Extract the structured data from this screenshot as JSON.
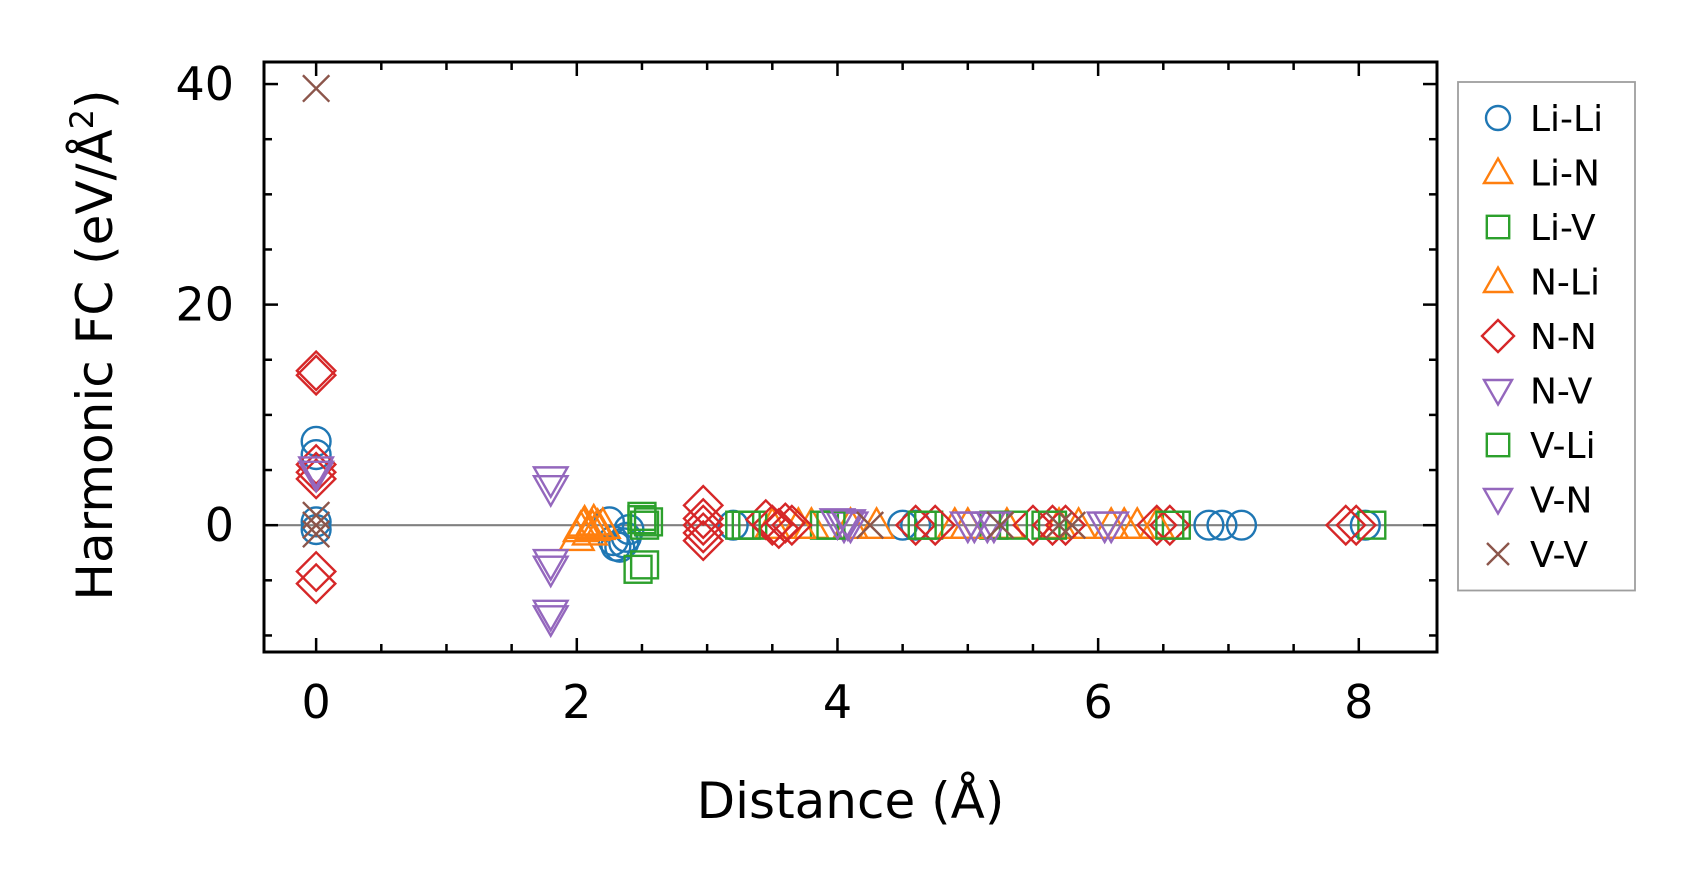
{
  "chart_data": {
    "type": "scatter",
    "title": "",
    "xlabel": "Distance (Å)",
    "ylabel_main": "Harmonic FC (eV/Å",
    "ylabel_sup": "2",
    "ylabel_close": ")",
    "xlim": [
      -0.4,
      8.6
    ],
    "ylim": [
      -11.5,
      42
    ],
    "xticks": [
      0,
      2,
      4,
      6,
      8
    ],
    "xtick_labels": [
      "0",
      "2",
      "4",
      "6",
      "8"
    ],
    "yticks": [
      0,
      20,
      40
    ],
    "ytick_labels": [
      "0",
      "20",
      "40"
    ],
    "reference_line_y": 0,
    "legend_position": "outside-right",
    "series": [
      {
        "name": "Li-Li",
        "marker": "circle",
        "color": "#1f77b4",
        "points": [
          [
            0,
            7.6
          ],
          [
            0,
            6.4
          ],
          [
            0,
            0.3
          ],
          [
            0,
            -0.4
          ],
          [
            2.25,
            0.3
          ],
          [
            2.28,
            -1.4
          ],
          [
            2.3,
            -1.9
          ],
          [
            2.33,
            -2.0
          ],
          [
            2.36,
            -1.6
          ],
          [
            2.38,
            -1.1
          ],
          [
            2.4,
            -0.4
          ],
          [
            3.2,
            0.0
          ],
          [
            4.5,
            0.0
          ],
          [
            4.6,
            0.0
          ],
          [
            6.85,
            0.0
          ],
          [
            6.95,
            0.0
          ],
          [
            7.1,
            0.0
          ],
          [
            8.05,
            0.0
          ]
        ]
      },
      {
        "name": "Li-N",
        "marker": "triangle-up",
        "color": "#ff7f0e",
        "points": [
          [
            2.0,
            -1.1
          ],
          [
            2.03,
            -0.3
          ],
          [
            2.06,
            0.2
          ],
          [
            2.1,
            -0.6
          ],
          [
            2.13,
            0.3
          ],
          [
            2.16,
            -0.1
          ],
          [
            2.2,
            0.0
          ],
          [
            3.5,
            0.0
          ],
          [
            3.8,
            0.0
          ],
          [
            4.1,
            0.0
          ],
          [
            4.9,
            0.0
          ],
          [
            5.3,
            0.0
          ],
          [
            5.85,
            0.0
          ],
          [
            6.2,
            0.0
          ],
          [
            6.3,
            0.0
          ]
        ]
      },
      {
        "name": "Li-V",
        "marker": "square",
        "color": "#2ca02c",
        "points": [
          [
            2.47,
            -4.0
          ],
          [
            2.52,
            -3.6
          ],
          [
            2.5,
            0.5
          ],
          [
            2.52,
            0.0
          ],
          [
            3.25,
            0.0
          ],
          [
            3.35,
            0.0
          ],
          [
            3.9,
            0.0
          ],
          [
            4.7,
            0.0
          ],
          [
            5.2,
            0.0
          ],
          [
            5.6,
            0.0
          ],
          [
            6.6,
            0.0
          ],
          [
            8.1,
            0.0
          ]
        ]
      },
      {
        "name": "N-Li",
        "marker": "triangle-up",
        "color": "#ff7f0e",
        "points": [
          [
            2.05,
            0.0
          ],
          [
            2.12,
            -0.2
          ],
          [
            3.7,
            0.0
          ],
          [
            4.3,
            0.0
          ],
          [
            5.0,
            0.0
          ],
          [
            5.7,
            0.0
          ],
          [
            6.1,
            0.0
          ],
          [
            6.45,
            0.0
          ]
        ]
      },
      {
        "name": "N-N",
        "marker": "diamond",
        "color": "#d62728",
        "points": [
          [
            0,
            14.0
          ],
          [
            0,
            13.6
          ],
          [
            0,
            5.5
          ],
          [
            0,
            4.8
          ],
          [
            0,
            4.2
          ],
          [
            0,
            -4.2
          ],
          [
            0,
            -5.3
          ],
          [
            2.97,
            1.8
          ],
          [
            2.97,
            0.6
          ],
          [
            2.97,
            0.0
          ],
          [
            2.97,
            -0.7
          ],
          [
            2.97,
            -1.4
          ],
          [
            3.45,
            0.5
          ],
          [
            3.5,
            0.0
          ],
          [
            3.55,
            -0.3
          ],
          [
            3.6,
            0.2
          ],
          [
            3.65,
            0.0
          ],
          [
            4.6,
            0.0
          ],
          [
            4.75,
            0.0
          ],
          [
            5.5,
            0.0
          ],
          [
            5.65,
            0.0
          ],
          [
            5.75,
            0.0
          ],
          [
            6.45,
            0.0
          ],
          [
            6.55,
            0.0
          ],
          [
            7.9,
            0.0
          ],
          [
            7.98,
            0.0
          ]
        ]
      },
      {
        "name": "N-V",
        "marker": "triangle-down",
        "color": "#9467bd",
        "points": [
          [
            0,
            5.0
          ],
          [
            1.8,
            4.1
          ],
          [
            1.8,
            3.3
          ],
          [
            1.8,
            -3.4
          ],
          [
            1.8,
            -4.0
          ],
          [
            1.8,
            -8.0
          ],
          [
            1.8,
            -8.5
          ],
          [
            4.05,
            0.0
          ],
          [
            4.1,
            0.0
          ],
          [
            5.05,
            0.0
          ],
          [
            5.15,
            0.0
          ],
          [
            6.1,
            0.0
          ]
        ]
      },
      {
        "name": "V-Li",
        "marker": "square",
        "color": "#2ca02c",
        "points": [
          [
            2.5,
            0.8
          ],
          [
            2.55,
            0.3
          ],
          [
            3.3,
            0.0
          ],
          [
            3.95,
            0.0
          ],
          [
            4.65,
            0.0
          ],
          [
            5.35,
            0.0
          ],
          [
            5.65,
            0.0
          ],
          [
            6.55,
            0.0
          ]
        ]
      },
      {
        "name": "V-N",
        "marker": "triangle-down",
        "color": "#9467bd",
        "points": [
          [
            0,
            4.6
          ],
          [
            4.0,
            0.3
          ],
          [
            4.08,
            0.2
          ],
          [
            5.0,
            0.0
          ],
          [
            5.2,
            0.0
          ],
          [
            6.05,
            0.0
          ]
        ]
      },
      {
        "name": "V-V",
        "marker": "x",
        "color": "#8c564b",
        "points": [
          [
            0,
            39.6
          ],
          [
            0,
            0.9
          ],
          [
            0,
            0.0
          ],
          [
            0,
            -0.8
          ],
          [
            4.25,
            0.0
          ],
          [
            5.25,
            0.0
          ],
          [
            5.7,
            0.0
          ],
          [
            5.8,
            0.0
          ]
        ]
      }
    ]
  }
}
